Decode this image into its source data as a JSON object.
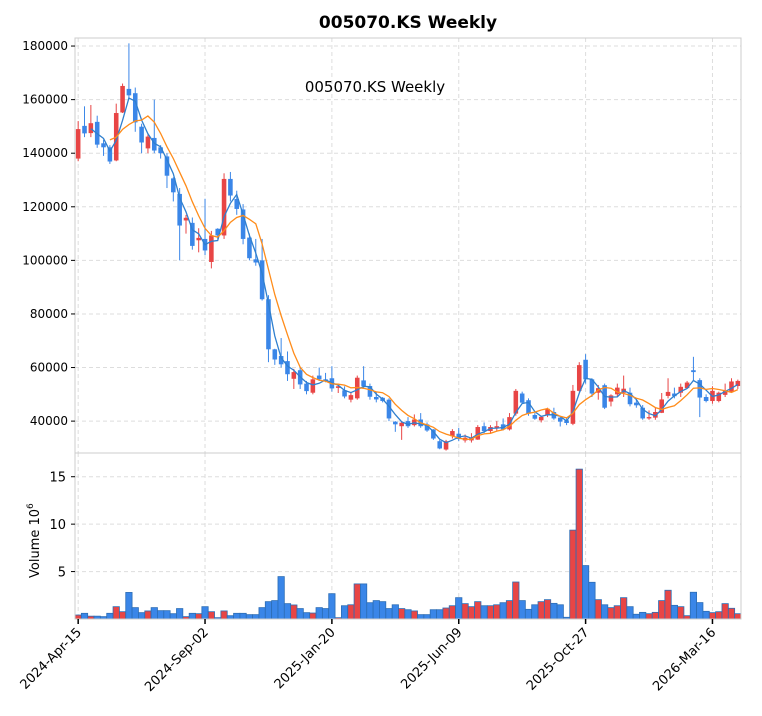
{
  "chart_data": {
    "type": "candlestick",
    "title": "005070.KS  Weekly",
    "inner_title": "005070.KS  Weekly",
    "xlabel": "",
    "ylabel": "",
    "volume_ylabel": "Volume  10",
    "volume_ylabel_exp": "6",
    "colors": {
      "up": "#e84545",
      "down": "#3a86e8",
      "volume_edge": "#2c6db5",
      "ma_short": "#2f7fce",
      "ma_long": "#ff8c1a",
      "grid": "#dddddd"
    },
    "moving_averages": [
      3,
      6
    ],
    "price_ylim": [
      28100,
      183000
    ],
    "price_yticks": [
      40000,
      60000,
      80000,
      100000,
      120000,
      140000,
      160000,
      180000
    ],
    "price_ytick_labels": [
      "40000",
      "60000",
      "80000",
      "100000",
      "120000",
      "140000",
      "160000",
      "180000"
    ],
    "volume_ylim": [
      0,
      17.5
    ],
    "volume_yticks": [
      5,
      10,
      15
    ],
    "volume_ytick_labels": [
      "5",
      "10",
      "15"
    ],
    "xticks": [
      0,
      20,
      40,
      60,
      80,
      100
    ],
    "xtick_labels": [
      "2024-Apr-15",
      "2024-Sep-02",
      "2025-Jan-20",
      "2025-Jun-09",
      "2025-Oct-27",
      "2026-Mar-16"
    ],
    "x_range": [
      -0.5,
      104.5
    ],
    "grid": true,
    "ohlc": [
      [
        138000,
        152000,
        137000,
        149000
      ],
      [
        150200,
        157500,
        146000,
        147400
      ],
      [
        147500,
        158000,
        146000,
        151200
      ],
      [
        151700,
        154000,
        142000,
        143200
      ],
      [
        143700,
        145000,
        139000,
        142200
      ],
      [
        142200,
        143000,
        136000,
        136900
      ],
      [
        137300,
        158500,
        137000,
        155000
      ],
      [
        155200,
        166000,
        155000,
        165100
      ],
      [
        164000,
        181000,
        160000,
        161600
      ],
      [
        162400,
        164500,
        148000,
        151500
      ],
      [
        149900,
        151000,
        140000,
        144000
      ],
      [
        141800,
        147000,
        140000,
        146200
      ],
      [
        145700,
        160000,
        140000,
        141000
      ],
      [
        142200,
        143000,
        138000,
        140000
      ],
      [
        138800,
        140000,
        127000,
        131600
      ],
      [
        130600,
        131000,
        122000,
        125400
      ],
      [
        124800,
        127000,
        100000,
        113000
      ],
      [
        114900,
        117000,
        110000,
        115900
      ],
      [
        114000,
        116000,
        104000,
        105400
      ],
      [
        107500,
        112000,
        103000,
        108400
      ],
      [
        108000,
        123000,
        102000,
        103700
      ],
      [
        99400,
        111000,
        97000,
        109300
      ],
      [
        111800,
        112000,
        108000,
        109300
      ],
      [
        109300,
        132500,
        108000,
        130400
      ],
      [
        130400,
        133000,
        122000,
        124200
      ],
      [
        122900,
        126000,
        117000,
        119200
      ],
      [
        119000,
        121000,
        106000,
        108000
      ],
      [
        108500,
        110000,
        100000,
        100800
      ],
      [
        100400,
        108000,
        98000,
        99200
      ],
      [
        100000,
        108000,
        85000,
        85500
      ],
      [
        85500,
        87000,
        62000,
        66800
      ],
      [
        66800,
        67000,
        61000,
        63000
      ],
      [
        64300,
        71000,
        60000,
        61200
      ],
      [
        62400,
        66000,
        55000,
        57500
      ],
      [
        55800,
        59500,
        52000,
        58300
      ],
      [
        59000,
        60000,
        52000,
        53700
      ],
      [
        54000,
        55000,
        50000,
        51200
      ],
      [
        50600,
        57000,
        50000,
        55600
      ],
      [
        57000,
        60000,
        55000,
        55600
      ],
      [
        55600,
        58000,
        54500,
        55000
      ],
      [
        56000,
        60500,
        51000,
        52200
      ],
      [
        52400,
        54000,
        50500,
        53000
      ],
      [
        51500,
        53000,
        48500,
        49200
      ],
      [
        48000,
        50500,
        47000,
        49700
      ],
      [
        48500,
        57000,
        48000,
        56200
      ],
      [
        55200,
        60500,
        52000,
        53100
      ],
      [
        53100,
        54000,
        48000,
        49100
      ],
      [
        49000,
        51000,
        47000,
        48100
      ],
      [
        48700,
        49000,
        47000,
        47500
      ],
      [
        48000,
        48500,
        40000,
        41000
      ],
      [
        39800,
        40000,
        36000,
        38800
      ],
      [
        38100,
        40000,
        33000,
        39400
      ],
      [
        40000,
        41500,
        37500,
        38100
      ],
      [
        38500,
        42500,
        38000,
        40600
      ],
      [
        40600,
        43000,
        37500,
        38100
      ],
      [
        38800,
        39500,
        36000,
        36500
      ],
      [
        36900,
        37000,
        33000,
        33500
      ],
      [
        32500,
        33000,
        29500,
        29800
      ],
      [
        29400,
        33000,
        29000,
        32500
      ],
      [
        34400,
        37000,
        33500,
        36300
      ],
      [
        35300,
        37500,
        32500,
        33300
      ],
      [
        32800,
        35000,
        32000,
        33800
      ],
      [
        32800,
        35500,
        32000,
        33800
      ],
      [
        33100,
        38500,
        33000,
        37800
      ],
      [
        38100,
        39500,
        35500,
        36300
      ],
      [
        36300,
        38500,
        35500,
        37800
      ],
      [
        37300,
        40000,
        36500,
        38100
      ],
      [
        38800,
        41000,
        36500,
        36900
      ],
      [
        36900,
        43000,
        36500,
        41500
      ],
      [
        42800,
        52000,
        42000,
        51300
      ],
      [
        50300,
        51000,
        46500,
        46900
      ],
      [
        47800,
        48500,
        42000,
        42800
      ],
      [
        42300,
        43000,
        40500,
        40900
      ],
      [
        40300,
        42000,
        39500,
        41600
      ],
      [
        42300,
        45000,
        41500,
        44600
      ],
      [
        43400,
        45000,
        40500,
        41000
      ],
      [
        41300,
        41500,
        38000,
        39800
      ],
      [
        40300,
        41000,
        38500,
        39300
      ],
      [
        39000,
        53500,
        38500,
        51300
      ],
      [
        51300,
        62000,
        51000,
        60900
      ],
      [
        62900,
        65000,
        54000,
        55600
      ],
      [
        55600,
        56000,
        49000,
        50300
      ],
      [
        50600,
        53500,
        48000,
        52300
      ],
      [
        53400,
        54000,
        44500,
        45000
      ],
      [
        47300,
        50000,
        45500,
        49600
      ],
      [
        50000,
        54000,
        49000,
        52500
      ],
      [
        50600,
        57000,
        49000,
        52100
      ],
      [
        50600,
        52500,
        45500,
        46300
      ],
      [
        46900,
        48000,
        45000,
        45900
      ],
      [
        45000,
        46000,
        40500,
        41000
      ],
      [
        41000,
        44000,
        40500,
        41500
      ],
      [
        41300,
        45000,
        40500,
        43400
      ],
      [
        43100,
        50500,
        43000,
        48100
      ],
      [
        49400,
        56000,
        48500,
        50900
      ],
      [
        50300,
        52500,
        48500,
        49300
      ],
      [
        50600,
        54000,
        49000,
        52800
      ],
      [
        52300,
        55000,
        52000,
        54400
      ],
      [
        59000,
        64000,
        55000,
        58300
      ],
      [
        55300,
        56000,
        41500,
        48800
      ],
      [
        49000,
        50000,
        47000,
        47500
      ],
      [
        47500,
        53000,
        46500,
        51300
      ],
      [
        47500,
        51000,
        47000,
        50600
      ],
      [
        49800,
        54000,
        49000,
        51300
      ],
      [
        51000,
        56000,
        50500,
        54800
      ],
      [
        53100,
        55500,
        52000,
        55000
      ]
    ],
    "volume_millions": [
      0.42,
      0.6,
      0.3,
      0.3,
      0.25,
      0.6,
      1.3,
      0.77,
      2.8,
      1.2,
      0.67,
      0.85,
      1.2,
      0.88,
      0.88,
      0.56,
      1.1,
      0.25,
      0.6,
      0.56,
      1.3,
      0.77,
      0.14,
      0.85,
      0.35,
      0.6,
      0.6,
      0.46,
      0.46,
      1.2,
      1.83,
      1.94,
      4.47,
      1.62,
      1.48,
      1.1,
      0.67,
      0.63,
      1.2,
      1.1,
      2.67,
      0.14,
      1.4,
      1.5,
      3.7,
      3.7,
      1.72,
      1.94,
      1.83,
      1.1,
      1.5,
      1.1,
      0.98,
      0.85,
      0.46,
      0.46,
      0.98,
      0.98,
      1.16,
      1.4,
      2.25,
      1.62,
      1.3,
      1.83,
      1.4,
      1.4,
      1.5,
      1.72,
      1.94,
      3.9,
      1.94,
      1.02,
      1.5,
      1.83,
      2.04,
      1.65,
      1.5,
      0.18,
      9.37,
      15.8,
      5.63,
      3.87,
      2.04,
      1.5,
      1.2,
      1.4,
      2.25,
      1.3,
      0.5,
      0.7,
      0.56,
      0.7,
      1.94,
      3.03,
      1.44,
      1.3,
      0.35,
      2.82,
      1.73,
      0.81,
      0.67,
      0.77,
      1.62,
      1.13,
      0.56
    ]
  }
}
